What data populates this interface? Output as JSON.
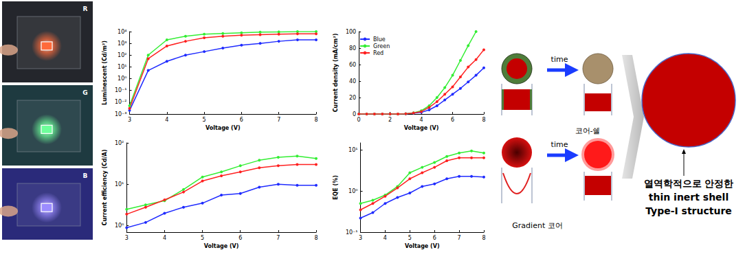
{
  "photos": [
    {
      "label": "R",
      "color": "#ff6a3a"
    },
    {
      "label": "G",
      "color": "#6dff9a"
    },
    {
      "label": "B",
      "color": "#9c8cff"
    }
  ],
  "chart_data": [
    {
      "type": "line",
      "x": [
        3,
        3.5,
        4,
        4.5,
        5,
        5.5,
        6,
        6.5,
        7,
        7.5,
        8
      ],
      "series": [
        {
          "color": "#1f2bff",
          "values": [
            0.002,
            5,
            30,
            100,
            200,
            400,
            700,
            1000,
            1500,
            2000,
            2000
          ]
        },
        {
          "color": "#33ee33",
          "values": [
            0.005,
            100,
            2000,
            4000,
            6000,
            7000,
            8000,
            9000,
            9500,
            10000,
            10000
          ]
        },
        {
          "color": "#ff2020",
          "values": [
            0.003,
            50,
            600,
            1500,
            3000,
            4000,
            5000,
            5500,
            6000,
            6500,
            6500
          ]
        }
      ],
      "xlim": [
        3,
        8
      ],
      "xticks": [
        3,
        4,
        5,
        6,
        7,
        8
      ],
      "ylim": [
        0.001,
        10000
      ],
      "yticks": [
        {
          "value": 0.001,
          "label": "10⁻³"
        },
        {
          "value": 0.01,
          "label": "10⁻²"
        },
        {
          "value": 0.1,
          "label": "10⁻¹"
        },
        {
          "value": 1,
          "label": "10⁰"
        },
        {
          "value": 10,
          "label": "10¹"
        },
        {
          "value": 100,
          "label": "10²"
        },
        {
          "value": 1000,
          "label": "10³"
        },
        {
          "value": 10000,
          "label": "10⁴"
        }
      ],
      "log": "y",
      "x_label": "Voltage (V)",
      "y_label": "Luminescent (Cd/m²)",
      "marker": "circle",
      "grid": false
    },
    {
      "type": "line",
      "x": [
        0,
        0.5,
        1,
        1.5,
        2,
        2.5,
        3,
        3.5,
        4,
        4.5,
        5,
        5.5,
        6,
        6.5,
        7,
        7.5,
        8
      ],
      "series": [
        {
          "name": "Blue",
          "color": "#1f2bff",
          "values": [
            0,
            0,
            0,
            0,
            0,
            0,
            0.2,
            1,
            2,
            5,
            10,
            17,
            24,
            31,
            39,
            47,
            56
          ]
        },
        {
          "name": "Green",
          "color": "#33ee33",
          "values": [
            0,
            0,
            0,
            0,
            0,
            0,
            0.3,
            1.5,
            4,
            10,
            20,
            32,
            47,
            65,
            83,
            100,
            null
          ]
        },
        {
          "name": "Red",
          "color": "#ff2020",
          "values": [
            0,
            0,
            0,
            0,
            0,
            0,
            0.3,
            1.2,
            3,
            8,
            15,
            24,
            33,
            45,
            57,
            66,
            78
          ]
        }
      ],
      "xlim": [
        0,
        8
      ],
      "xticks": [
        0,
        2,
        4,
        6,
        8
      ],
      "ylim": [
        0,
        100
      ],
      "yticks": [
        0,
        20,
        40,
        60,
        80,
        100
      ],
      "x_label": "Voltage (V)",
      "y_label": "Current density (mA/cm²)",
      "marker": "circle",
      "legend": "upper left",
      "grid": false
    },
    {
      "type": "line",
      "x": [
        3,
        3.5,
        4,
        4.5,
        5,
        5.5,
        6,
        6.5,
        7,
        7.5,
        8
      ],
      "series": [
        {
          "color": "#1f2bff",
          "values": [
            0.9,
            1.2,
            2,
            2.8,
            3.5,
            5.5,
            6,
            8.5,
            10,
            9.5,
            9.5
          ]
        },
        {
          "color": "#33ee33",
          "values": [
            2.5,
            3.2,
            4,
            7.5,
            15,
            20,
            28,
            38,
            45,
            48,
            42
          ]
        },
        {
          "color": "#ff2020",
          "values": [
            1.9,
            2.8,
            4.2,
            6.5,
            12,
            16,
            20,
            25,
            28,
            30,
            30
          ]
        }
      ],
      "xlim": [
        3,
        8
      ],
      "xticks": [
        3,
        4,
        5,
        6,
        7,
        8
      ],
      "ylim": [
        0.7,
        100
      ],
      "yticks": [
        {
          "value": 1,
          "label": "10⁰"
        },
        {
          "value": 10,
          "label": "10¹"
        },
        {
          "value": 100,
          "label": "10²"
        }
      ],
      "log": "y",
      "x_label": "Voltage (V)",
      "y_label": "Current efficiency (Cd/A)",
      "marker": "circle",
      "grid": false
    },
    {
      "type": "line",
      "x": [
        3,
        3.5,
        4,
        4.5,
        5,
        5.5,
        6,
        6.5,
        7,
        7.5,
        8
      ],
      "series": [
        {
          "color": "#1f2bff",
          "values": [
            0.22,
            0.3,
            0.5,
            0.7,
            0.9,
            1.3,
            1.5,
            2,
            2.3,
            2.3,
            2.2
          ]
        },
        {
          "color": "#33ee33",
          "values": [
            0.5,
            0.6,
            0.8,
            1.3,
            2.8,
            3.8,
            5,
            7,
            8.5,
            9.5,
            8.5
          ]
        },
        {
          "color": "#ff2020",
          "values": [
            0.35,
            0.5,
            0.75,
            1.2,
            2,
            2.8,
            3.8,
            5.5,
            6.5,
            6.5,
            6.5
          ]
        }
      ],
      "xlim": [
        3,
        8
      ],
      "xticks": [
        3,
        4,
        5,
        6,
        7,
        8
      ],
      "ylim": [
        0.1,
        15
      ],
      "yticks": [
        {
          "value": 0.1,
          "label": "10⁻¹"
        },
        {
          "value": 1,
          "label": "10⁰"
        },
        {
          "value": 10,
          "label": "10¹"
        }
      ],
      "log": "y",
      "x_label": "Voltage (V)",
      "y_label": "EQE (%)",
      "marker": "circle",
      "grid": false
    }
  ],
  "diagram": {
    "rows": [
      {
        "arrow_label": "time",
        "caption": "코어-쉘"
      },
      {
        "arrow_label": "time",
        "caption": "Gradient 코어"
      }
    ],
    "result": [
      "열역학적으로 안정한",
      "thin inert shell",
      "Type-I structure"
    ]
  }
}
